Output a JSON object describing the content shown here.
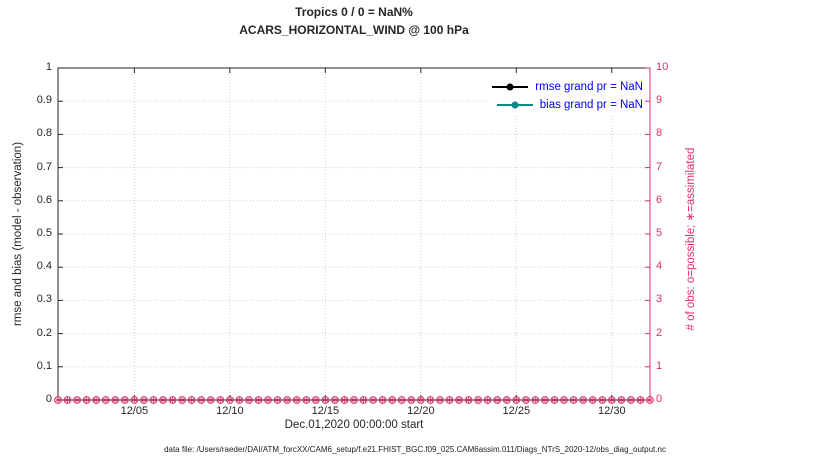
{
  "colors": {
    "axis": "#262626",
    "grid": "#cfcfcf",
    "obs_axis": "#d9306b",
    "rmse": "#000000",
    "bias": "#008b8b",
    "legend_text": "#0000ee"
  },
  "figure": {
    "footer": "data file: /Users/raeder/DAI/ATM_forcXX/CAM6_setup/f.e21.FHIST_BGC.f09_025.CAM6assim.011/Diags_NTrS_2020-12/obs_diag_output.nc"
  },
  "chart_data": {
    "type": "line",
    "title": "Tropics 0 / 0 = NaN%",
    "subtitle": "ACARS_HORIZONTAL_WIND @ 100 hPa",
    "grid": true,
    "legend_position": "top-right",
    "x_axis": {
      "label": "Dec.01,2020 00:00:00 start",
      "range": [
        1,
        32
      ],
      "ticks": [
        5,
        10,
        15,
        20,
        25,
        30
      ],
      "tick_labels": [
        "12/05",
        "12/10",
        "12/15",
        "12/20",
        "12/25",
        "12/30"
      ]
    },
    "y_left": {
      "label": "rmse and bias (model - observation)",
      "range": [
        0,
        1
      ],
      "ticks": [
        0,
        0.1,
        0.2,
        0.3,
        0.4,
        0.5,
        0.6,
        0.7,
        0.8,
        0.9,
        1
      ],
      "tick_labels": [
        "0",
        "0.1",
        "0.2",
        "0.3",
        "0.4",
        "0.5",
        "0.6",
        "0.7",
        "0.8",
        "0.9",
        "1"
      ]
    },
    "y_right": {
      "label": "# of obs: o=possible; ∗=assimilated",
      "range": [
        0,
        10
      ],
      "ticks": [
        0,
        1,
        2,
        3,
        4,
        5,
        6,
        7,
        8,
        9,
        10
      ],
      "tick_labels": [
        "0",
        "1",
        "2",
        "3",
        "4",
        "5",
        "6",
        "7",
        "8",
        "9",
        "10"
      ],
      "color": "#d9306b"
    },
    "series": [
      {
        "name": "rmse grand pr = NaN",
        "color": "#000000",
        "grand_value": "NaN",
        "x": [],
        "values": []
      },
      {
        "name": "bias grand pr = NaN",
        "color": "#008b8b",
        "grand_value": "NaN",
        "x": [],
        "values": []
      }
    ],
    "obs_markers": {
      "possible_symbol": "o",
      "assimilated_symbol": "∗",
      "possible_count": 0,
      "assimilated_count": 0,
      "value": 0,
      "start_day": 1,
      "end_day": 32,
      "step_days": 0.5,
      "color": "#d9306b"
    }
  }
}
